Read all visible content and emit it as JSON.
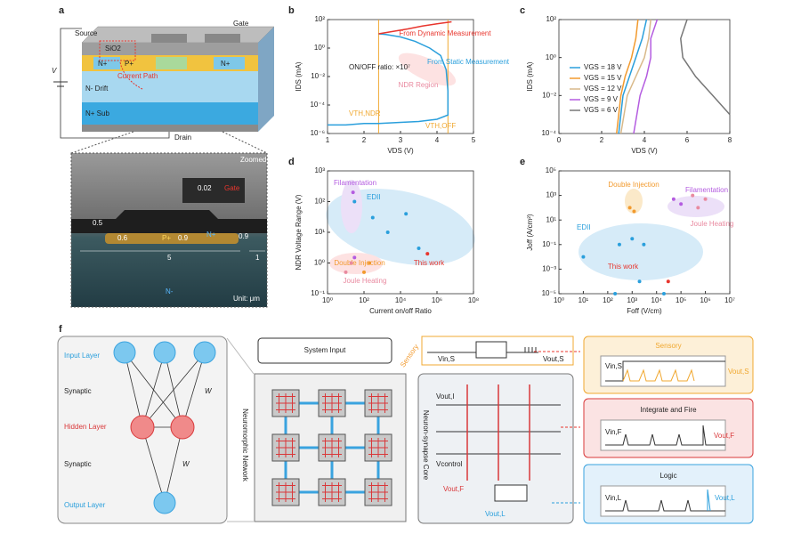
{
  "panel_a": {
    "label": "a",
    "source": "Source",
    "gate": "Gate",
    "sio2": "SiO2",
    "n_plus_1": "N+",
    "n_plus_2": "N+",
    "p_plus": "P+",
    "current_path": "Current Path",
    "drift": "N- Drift",
    "sub": "N+ Sub",
    "drain": "Drain",
    "v": "V",
    "zoomed": "Zoomed-in",
    "dim_002": "0.02",
    "gate_zoom": "Gate",
    "dim_05": "0.5",
    "dim_06": "0.6",
    "p_zoom": "P+",
    "dim_09a": "0.9",
    "n_zoom": "N+",
    "dim_09b": "0.9",
    "dim_5": "5",
    "dim_1": "1",
    "n_minus": "N-",
    "unit": "Unit: μm"
  },
  "chart_data": [
    {
      "type": "line",
      "label": "b",
      "xlabel": "VDS (V)",
      "ylabel": "IDS (mA)",
      "xscale": "linear",
      "yscale": "log",
      "xlim": [
        1,
        5
      ],
      "xticks": [
        1,
        2,
        3,
        4,
        5
      ],
      "ylim": [
        1e-06,
        100
      ],
      "yticks": [
        {
          "value": 1e-06,
          "label": "10⁻⁶"
        },
        {
          "value": 0.0001,
          "label": "10⁻⁴"
        },
        {
          "value": 0.01,
          "label": "10⁻²"
        },
        {
          "value": 1,
          "label": "10⁰"
        },
        {
          "value": 100,
          "label": "10²"
        }
      ],
      "vlines": [
        2.4,
        4.3
      ],
      "annotations": [
        "ON/OFF ratio: ×10⁷",
        "NDR Region",
        "VTH,NDR",
        "VTH,OFF"
      ],
      "series": [
        {
          "name": "From Static Measurement",
          "color": "#2a9fdc",
          "x": [
            1,
            1.5,
            2,
            2.4,
            3,
            3.5,
            4,
            4.3,
            4.3,
            4.25,
            4.1,
            3.8,
            3.4,
            3.0,
            2.6,
            2.4
          ],
          "values": [
            4e-06,
            4e-06,
            5e-06,
            5e-06,
            6e-06,
            7e-06,
            1e-05,
            2e-05,
            0.001,
            0.03,
            0.3,
            1,
            3,
            6,
            9,
            10
          ]
        },
        {
          "name": "From Dynamic Measurement",
          "color": "#e8352d",
          "x": [
            2.4,
            2.8,
            3.2,
            3.6,
            4.0,
            4.4
          ],
          "values": [
            10,
            15,
            22,
            35,
            50,
            70
          ]
        }
      ]
    },
    {
      "type": "line",
      "label": "c",
      "xlabel": "VDS (V)",
      "ylabel": "IDS (mA)",
      "xscale": "linear",
      "yscale": "log",
      "xlim": [
        0,
        8
      ],
      "xticks": [
        0,
        2,
        4,
        6,
        8
      ],
      "ylim": [
        0.0001,
        100
      ],
      "yticks": [
        {
          "value": 0.0001,
          "label": "10⁻⁴"
        },
        {
          "value": 0.01,
          "label": "10⁻²"
        },
        {
          "value": 1,
          "label": "10⁰"
        },
        {
          "value": 100,
          "label": "10²"
        }
      ],
      "series": [
        {
          "name": "VGS = 18 V",
          "color": "#2a9fdc",
          "x": [
            4.1,
            3.9,
            3.6,
            3.3,
            3.0,
            2.8
          ],
          "values": [
            100,
            10,
            1,
            0.1,
            0.01,
            0.0001
          ]
        },
        {
          "name": "VGS = 15 V",
          "color": "#f29a2e",
          "x": [
            3.7,
            3.6,
            3.4,
            3.1,
            2.9,
            2.7
          ],
          "values": [
            100,
            10,
            1,
            0.1,
            0.01,
            0.0001
          ]
        },
        {
          "name": "VGS = 12 V",
          "color": "#d9b98a",
          "x": [
            4.3,
            4.2,
            4.0,
            3.6,
            3.2,
            2.9
          ],
          "values": [
            100,
            10,
            1,
            0.1,
            0.01,
            0.0001
          ]
        },
        {
          "name": "VGS = 9 V",
          "color": "#b45ce0",
          "x": [
            4.6,
            4.3,
            4.3,
            4.1,
            3.8,
            3.5
          ],
          "values": [
            100,
            10,
            1,
            0.1,
            0.01,
            0.0001
          ]
        },
        {
          "name": "VGS = 6 V",
          "color": "#777777",
          "x": [
            6.0,
            5.7,
            5.8,
            6.4,
            7.2,
            8.0
          ],
          "values": [
            100,
            10,
            1,
            0.1,
            0.01,
            0.001
          ]
        }
      ]
    },
    {
      "type": "scatter",
      "label": "d",
      "xlabel": "Current on/off Ratio",
      "ylabel": "NDR Voltage Range (V)",
      "xscale": "log",
      "yscale": "log",
      "xlim": [
        1,
        100000000
      ],
      "xticks": [
        {
          "value": 1,
          "label": "10⁰"
        },
        {
          "value": 100,
          "label": "10²"
        },
        {
          "value": 10000,
          "label": "10⁴"
        },
        {
          "value": 1000000,
          "label": "10⁶"
        },
        {
          "value": 100000000,
          "label": "10⁸"
        }
      ],
      "ylim": [
        0.1,
        1000
      ],
      "yticks": [
        {
          "value": 0.1,
          "label": "10⁻¹"
        },
        {
          "value": 1,
          "label": "10⁰"
        },
        {
          "value": 10,
          "label": "10¹"
        },
        {
          "value": 100,
          "label": "10²"
        },
        {
          "value": 1000,
          "label": "10³"
        }
      ],
      "series": [
        {
          "name": "Filamentation",
          "color": "#b45ce0",
          "x": [
            25,
            30
          ],
          "values": [
            200,
            1.5
          ]
        },
        {
          "name": "EDII",
          "color": "#2a9fdc",
          "x": [
            30,
            300,
            2000,
            20000,
            100000
          ],
          "values": [
            100,
            30,
            10,
            40,
            3
          ]
        },
        {
          "name": "Double Injection",
          "color": "#f29a2e",
          "x": [
            200,
            100
          ],
          "values": [
            1,
            0.5
          ]
        },
        {
          "name": "Joule Heating",
          "color": "#e98aa0",
          "x": [
            10,
            20
          ],
          "values": [
            0.5,
            1
          ]
        },
        {
          "name": "This work",
          "color": "#e8352d",
          "x": [
            300000
          ],
          "values": [
            2
          ]
        }
      ]
    },
    {
      "type": "scatter",
      "label": "e",
      "xlabel": "Foff (V/cm)",
      "ylabel": "Joff (A/cm²)",
      "xscale": "log",
      "yscale": "log",
      "xlim": [
        1,
        10000000
      ],
      "xticks": [
        {
          "value": 1,
          "label": "10⁰"
        },
        {
          "value": 10,
          "label": "10¹"
        },
        {
          "value": 100,
          "label": "10²"
        },
        {
          "value": 1000,
          "label": "10³"
        },
        {
          "value": 10000,
          "label": "10⁴"
        },
        {
          "value": 100000,
          "label": "10⁵"
        },
        {
          "value": 1000000,
          "label": "10⁶"
        },
        {
          "value": 10000000,
          "label": "10⁷"
        }
      ],
      "ylim": [
        1e-05,
        100000
      ],
      "yticks": [
        {
          "value": 1e-05,
          "label": "10⁻⁵"
        },
        {
          "value": 0.001,
          "label": "10⁻³"
        },
        {
          "value": 0.1,
          "label": "10⁻¹"
        },
        {
          "value": 10,
          "label": "10¹"
        },
        {
          "value": 1000,
          "label": "10³"
        },
        {
          "value": 100000,
          "label": "10⁵"
        }
      ],
      "series": [
        {
          "name": "Double Injection",
          "color": "#f29a2e",
          "x": [
            800,
            1200
          ],
          "values": [
            100,
            50
          ]
        },
        {
          "name": "Filamentation",
          "color": "#b45ce0",
          "x": [
            50000,
            100000
          ],
          "values": [
            500,
            200
          ]
        },
        {
          "name": "Joule Heating",
          "color": "#e98aa0",
          "x": [
            300000,
            1000000,
            500000
          ],
          "values": [
            1000,
            500,
            100
          ]
        },
        {
          "name": "EDII",
          "color": "#2a9fdc",
          "x": [
            10,
            300,
            1000,
            3000,
            20000,
            200,
            2000
          ],
          "values": [
            0.01,
            0.1,
            0.3,
            0.1,
            1e-05,
            1e-05,
            0.0001
          ]
        },
        {
          "name": "This work",
          "color": "#e8352d",
          "x": [
            30000
          ],
          "values": [
            0.0001
          ]
        }
      ]
    }
  ],
  "panel_f": {
    "label": "f",
    "input_layer": "Input Layer",
    "synaptic_1": "Synaptic",
    "hidden_layer": "Hidden Layer",
    "synaptic_2": "Synaptic",
    "output_layer": "Output Layer",
    "w1": "W",
    "w2": "W",
    "system_input": "System Input",
    "network": "Neuromorphic Network",
    "sensory_link": "Sensory",
    "core": "Neuron-synapse Core",
    "core_vin": "Vin,S",
    "core_vout": "Vout,S",
    "vout_i": "Vout,I",
    "vcontrol": "Vcontrol",
    "vout_f": "Vout,F",
    "vout_l": "Vout,L",
    "sensory": {
      "title": "Sensory",
      "vin": "Vin,S",
      "vout": "Vout,S"
    },
    "fire": {
      "title": "Integrate and Fire",
      "vin": "Vin,F",
      "vout": "Vout,F"
    },
    "logic": {
      "title": "Logic",
      "vin": "Vin,L",
      "vout": "Vout,L"
    }
  }
}
